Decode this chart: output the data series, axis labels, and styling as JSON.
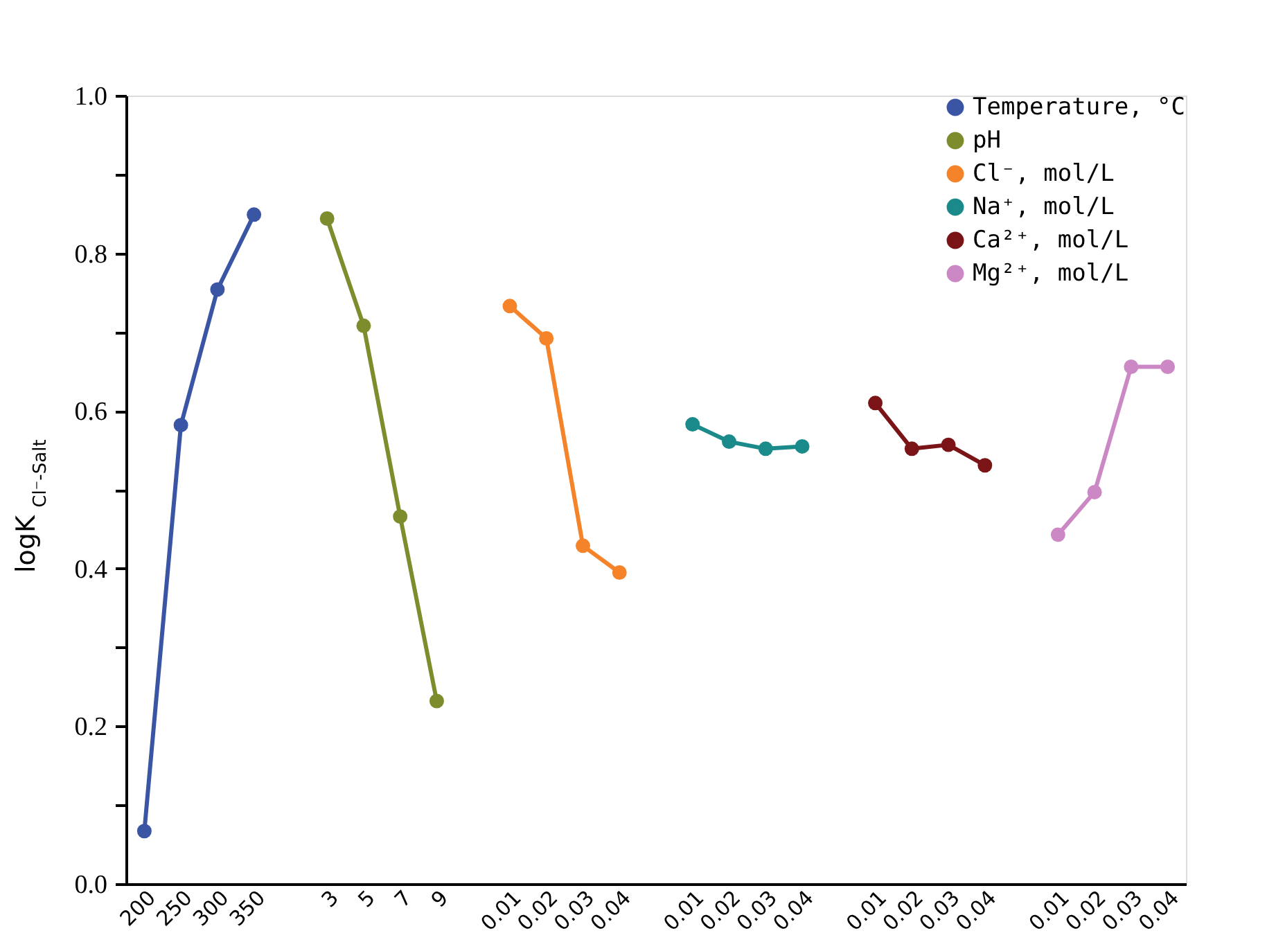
{
  "chart_data": {
    "type": "line",
    "ylabel": "logK$_{Cl⁻-Salt}$",
    "categories": [
      "200",
      "250",
      "300",
      "350",
      null,
      "3",
      "5",
      "7",
      "9",
      null,
      "0.01",
      "0.02",
      "0.03",
      "0.04",
      null,
      "0.01",
      "0.02",
      "0.03",
      "0.04",
      null,
      "0.01",
      "0.02",
      "0.03",
      "0.04",
      null,
      "0.01",
      "0.02",
      "0.03",
      "0.04"
    ],
    "series": [
      {
        "name": "Temperature, °C",
        "color": "#3a55a4",
        "values": [
          0.067,
          0.582,
          0.754,
          0.849,
          null,
          null,
          null,
          null,
          null,
          null,
          null,
          null,
          null,
          null,
          null,
          null,
          null,
          null,
          null,
          null,
          null,
          null,
          null,
          null,
          null,
          null,
          null,
          null,
          null
        ]
      },
      {
        "name": "pH",
        "color": "#7d8c2c",
        "values": [
          null,
          null,
          null,
          null,
          null,
          0.844,
          0.708,
          0.466,
          0.232,
          null,
          null,
          null,
          null,
          null,
          null,
          null,
          null,
          null,
          null,
          null,
          null,
          null,
          null,
          null,
          null,
          null,
          null,
          null,
          null
        ]
      },
      {
        "name": "Cl⁻, mol/L",
        "color": "#f5832a",
        "values": [
          null,
          null,
          null,
          null,
          null,
          null,
          null,
          null,
          null,
          null,
          0.733,
          0.692,
          0.429,
          0.395,
          null,
          null,
          null,
          null,
          null,
          null,
          null,
          null,
          null,
          null,
          null,
          null,
          null,
          null,
          null
        ]
      },
      {
        "name": "Na⁺, mol/L",
        "color": "#1a8a8a",
        "values": [
          null,
          null,
          null,
          null,
          null,
          null,
          null,
          null,
          null,
          null,
          null,
          null,
          null,
          null,
          null,
          0.583,
          0.561,
          0.552,
          0.555,
          null,
          null,
          null,
          null,
          null,
          null,
          null,
          null,
          null,
          null
        ]
      },
      {
        "name": "Ca²⁺, mol/L",
        "color": "#7a1416",
        "values": [
          null,
          null,
          null,
          null,
          null,
          null,
          null,
          null,
          null,
          null,
          null,
          null,
          null,
          null,
          null,
          null,
          null,
          null,
          null,
          null,
          0.61,
          0.552,
          0.557,
          0.531,
          null,
          null,
          null,
          null,
          null
        ]
      },
      {
        "name": "Mg²⁺, mol/L",
        "color": "#cc88c4",
        "values": [
          null,
          null,
          null,
          null,
          null,
          null,
          null,
          null,
          null,
          null,
          null,
          null,
          null,
          null,
          null,
          null,
          null,
          null,
          null,
          null,
          null,
          null,
          null,
          null,
          null,
          0.443,
          0.497,
          0.656,
          0.656
        ]
      }
    ],
    "ylim": [
      0,
      1.0
    ],
    "yticks": [
      {
        "value": 0,
        "label": "0.0"
      },
      {
        "value": 0.1,
        "label": null
      },
      {
        "value": 0.2,
        "label": "0.2"
      },
      {
        "value": 0.3,
        "label": null
      },
      {
        "value": 0.4,
        "label": "0.4"
      },
      {
        "value": 0.5,
        "label": null
      },
      {
        "value": 0.6,
        "label": "0.6"
      },
      {
        "value": 0.7,
        "label": null
      },
      {
        "value": 0.8,
        "label": "0.8"
      },
      {
        "value": 0.9,
        "label": null
      },
      {
        "value": 1.0,
        "label": "1.0"
      }
    ],
    "grid": false,
    "legend": "top right",
    "marker": "circle",
    "line_style": "solid"
  }
}
